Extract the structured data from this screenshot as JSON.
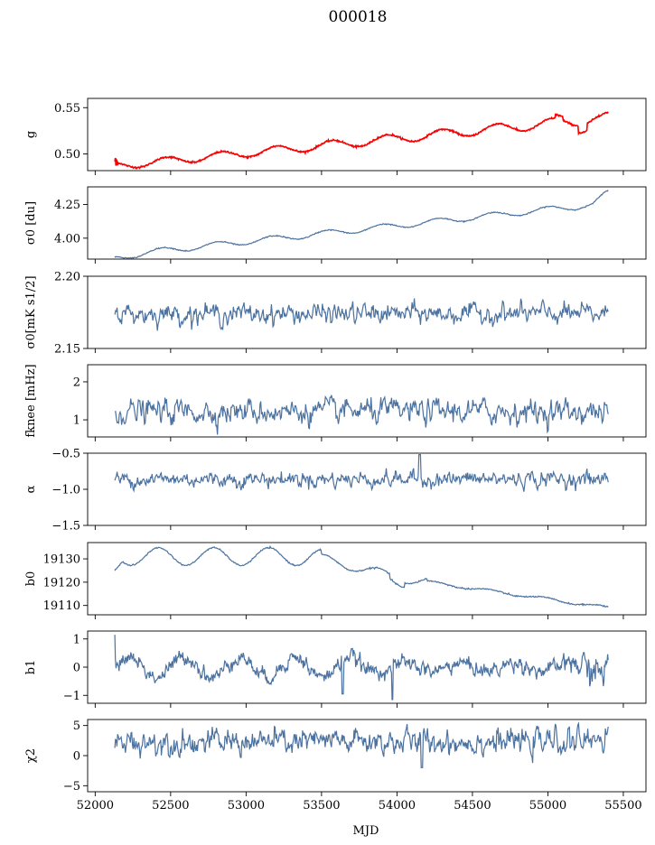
{
  "figure_title": "000018",
  "chart_data": {
    "type": "line",
    "title": "000018",
    "xlabel": "MJD",
    "xlim": [
      51950,
      55650
    ],
    "xticks": [
      52000,
      52500,
      53000,
      53500,
      54000,
      54500,
      55000,
      55500
    ],
    "xtick_labels": [
      "52000",
      "52500",
      "53000",
      "53500",
      "54000",
      "54500",
      "55000",
      "55500"
    ],
    "x_start": 52130,
    "x_end": 55400,
    "line_color": "#4c72a0",
    "overlay_color": "#ff0000",
    "panels": [
      {
        "id": "g",
        "ylabel": "g",
        "ylim": [
          0.482,
          0.56
        ],
        "yticks": [
          0.5,
          0.55
        ],
        "ytick_labels": [
          "0.50",
          "0.55"
        ],
        "shape": "g",
        "points": 900,
        "has_overlay": true,
        "overlay_series": "fit"
      },
      {
        "id": "sigma0",
        "ylabel": "σ0 [du]",
        "ylim": [
          3.845,
          4.38
        ],
        "yticks": [
          4.0,
          4.25
        ],
        "ytick_labels": [
          "4.00",
          "4.25"
        ],
        "shape": "sigma0",
        "points": 700
      },
      {
        "id": "sigma0-mk",
        "ylabel": "σ0[mK s1/2]",
        "ylim": [
          2.15,
          2.2
        ],
        "yticks": [
          2.15,
          2.2
        ],
        "ytick_labels": [
          "2.15",
          "2.20"
        ],
        "shape": "noise",
        "base": 2.174,
        "amp": 0.0035,
        "points": 650
      },
      {
        "id": "fknee",
        "ylabel": "fknee [mHz]",
        "ylim": [
          0.55,
          2.45
        ],
        "yticks": [
          1,
          2
        ],
        "ytick_labels": [
          "1",
          "2"
        ],
        "shape": "noise",
        "base": 1.22,
        "amp": 0.16,
        "points": 650
      },
      {
        "id": "alpha",
        "ylabel": "α",
        "ylim": [
          -1.5,
          -0.5
        ],
        "yticks": [
          -1.5,
          -1.0,
          -0.5
        ],
        "ytick_labels": [
          "−1.5",
          "−1.0",
          "−0.5"
        ],
        "shape": "noise",
        "base": -0.86,
        "amp": 0.055,
        "points": 650
      },
      {
        "id": "b0",
        "ylabel": "b0",
        "ylim": [
          19106,
          19137
        ],
        "yticks": [
          19110,
          19120,
          19130
        ],
        "ytick_labels": [
          "19110",
          "19120",
          "19130"
        ],
        "shape": "b0",
        "points": 700
      },
      {
        "id": "b1",
        "ylabel": "b1",
        "ylim": [
          -1.28,
          1.28
        ],
        "yticks": [
          -1,
          0,
          1
        ],
        "ytick_labels": [
          "−1",
          "0",
          "1"
        ],
        "shape": "b1",
        "points": 800
      },
      {
        "id": "chi2",
        "ylabel": "χ2",
        "ylim": [
          -6,
          6
        ],
        "yticks": [
          -5,
          0,
          5
        ],
        "ytick_labels": [
          "−5",
          "0",
          "5"
        ],
        "shape": "noise",
        "base": 2.3,
        "amp": 1.05,
        "points": 700
      }
    ]
  }
}
